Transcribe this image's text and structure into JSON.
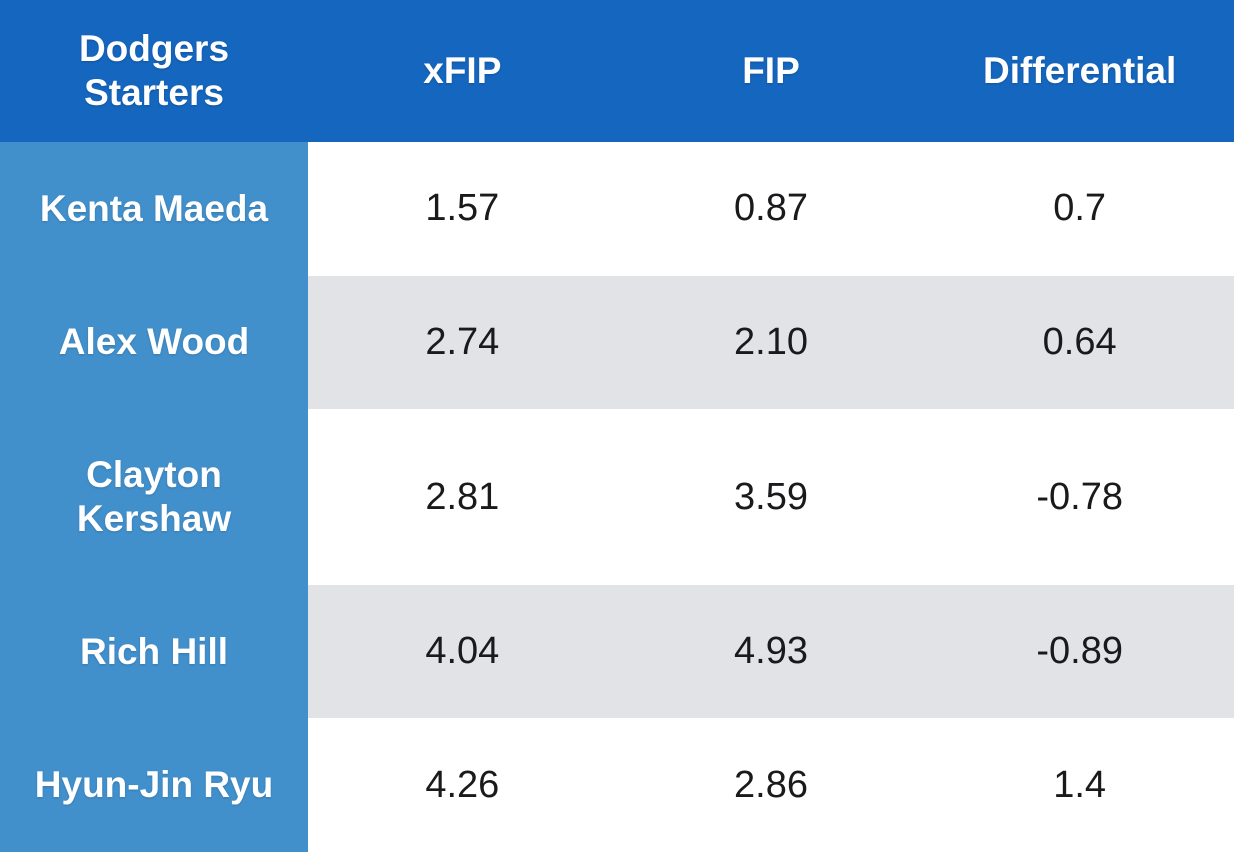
{
  "table": {
    "headers": [
      "Dodgers Starters",
      "xFIP",
      "FIP",
      "Differential"
    ],
    "rows": [
      {
        "player": "Kenta Maeda",
        "xfip": "1.57",
        "fip": "0.87",
        "differential": "0.7"
      },
      {
        "player": "Alex Wood",
        "xfip": "2.74",
        "fip": "2.10",
        "differential": "0.64"
      },
      {
        "player": "Clayton Kershaw",
        "xfip": "2.81",
        "fip": "3.59",
        "differential": "-0.78"
      },
      {
        "player": "Rich Hill",
        "xfip": "4.04",
        "fip": "4.93",
        "differential": "-0.89"
      },
      {
        "player": "Hyun-Jin Ryu",
        "xfip": "4.26",
        "fip": "2.86",
        "differential": "1.4"
      }
    ]
  },
  "colors": {
    "header_bg": "#1566BE",
    "row_label_bg": "#418FCB",
    "alt_row_bg": "#E2E3E7",
    "header_text": "#FFFFFF",
    "value_text": "#1A1A1C"
  },
  "chart_data": {
    "type": "table",
    "columns": [
      "Dodgers Starters",
      "xFIP",
      "FIP",
      "Differential"
    ],
    "rows": [
      [
        "Kenta Maeda",
        1.57,
        0.87,
        0.7
      ],
      [
        "Alex Wood",
        2.74,
        2.1,
        0.64
      ],
      [
        "Clayton Kershaw",
        2.81,
        3.59,
        -0.78
      ],
      [
        "Rich Hill",
        4.04,
        4.93,
        -0.89
      ],
      [
        "Hyun-Jin Ryu",
        4.26,
        2.86,
        1.4
      ]
    ],
    "layout_hints": {
      "header_row": true,
      "label_column": true,
      "alternating_row_shading": true,
      "gridlines": false
    }
  }
}
